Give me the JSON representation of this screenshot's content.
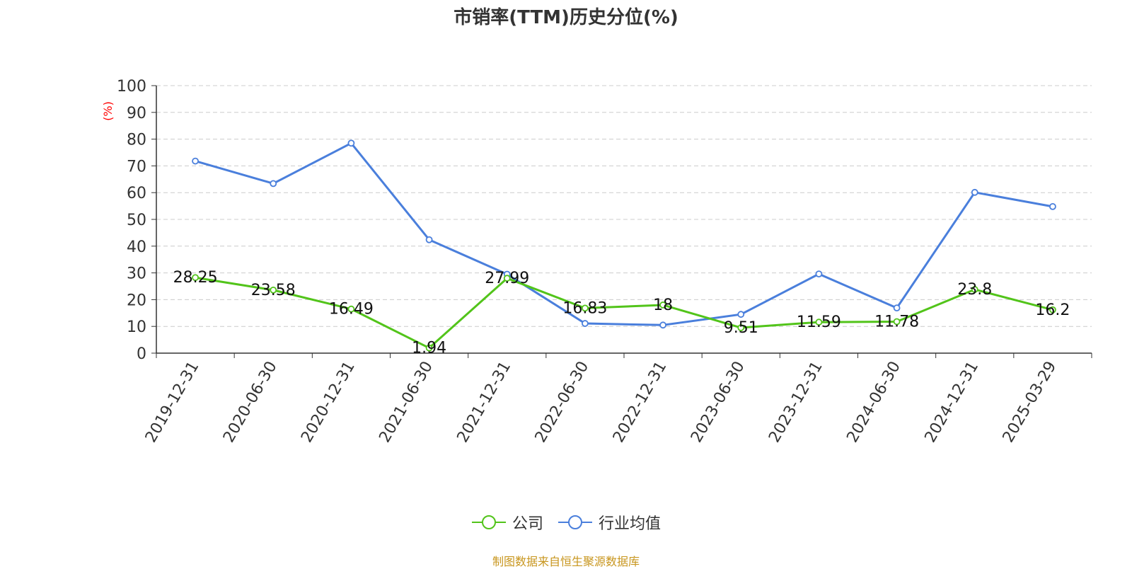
{
  "colors": {
    "company": "#52c41a",
    "industry": "#4a7fdc",
    "source": "#c8961e",
    "ylabel": "#ff0000"
  },
  "chart_data": {
    "type": "line",
    "title": "市销率(TTM)历史分位(%)",
    "ylabel": "(%)",
    "ylim": [
      0,
      100
    ],
    "yticks": [
      "0",
      "10",
      "20",
      "30",
      "40",
      "50",
      "60",
      "70",
      "80",
      "90",
      "100"
    ],
    "grid": true,
    "legend_position": "bottom",
    "categories": [
      "2019-12-31",
      "2020-06-30",
      "2020-12-31",
      "2021-06-30",
      "2021-12-31",
      "2022-06-30",
      "2022-12-31",
      "2023-06-30",
      "2023-12-31",
      "2024-06-30",
      "2024-12-31",
      "2025-03-29"
    ],
    "series": [
      {
        "name": "公司",
        "values": [
          28.25,
          23.58,
          16.49,
          1.94,
          27.99,
          16.83,
          18,
          9.51,
          11.59,
          11.78,
          23.8,
          16.2
        ],
        "labels": [
          "28.25",
          "23.58",
          "16.49",
          "1.94",
          "27.99",
          "16.83",
          "18",
          "9.51",
          "11.59",
          "11.78",
          "23.8",
          "16.2"
        ]
      },
      {
        "name": "行业均值",
        "values": [
          71.8,
          63.4,
          78.5,
          42.4,
          29.5,
          11.1,
          10.5,
          14.5,
          29.6,
          16.9,
          60.1,
          54.8
        ]
      }
    ]
  },
  "source_text": "制图数据来自恒生聚源数据库"
}
